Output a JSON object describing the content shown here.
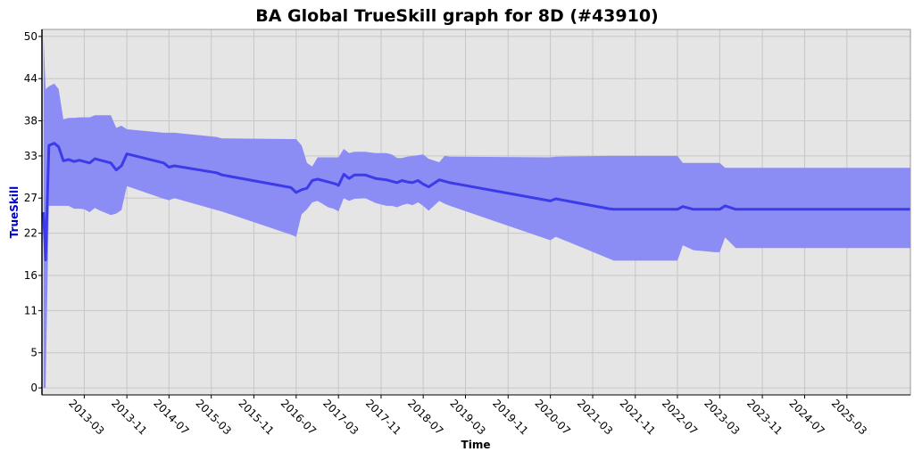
{
  "chart_data": {
    "type": "line",
    "title": "BA Global TrueSkill graph for 8D (#43910)",
    "xlabel": "Time",
    "ylabel": "TrueSkill",
    "x_ticks": [
      "2013-03",
      "2013-11",
      "2014-07",
      "2015-03",
      "2015-11",
      "2016-07",
      "2017-03",
      "2017-11",
      "2018-07",
      "2019-03",
      "2019-11",
      "2020-07",
      "2021-03",
      "2021-11",
      "2022-07",
      "2023-03",
      "2023-11",
      "2024-07",
      "2025-03"
    ],
    "y_ticks": [
      0,
      5,
      11,
      16,
      22,
      27,
      33,
      38,
      44,
      50
    ],
    "xlim": [
      "2012-07",
      "2026-03"
    ],
    "ylim": [
      -1,
      51
    ],
    "grid": true,
    "colors": {
      "line": "#3b3bea",
      "band": "#8c8cf5",
      "plot_bg": "#e5e5e5",
      "ylabel": "#0000cc"
    },
    "series": [
      {
        "x": [
          "2012-07-10",
          "2012-07-22",
          "2012-08-10",
          "2012-09-10",
          "2012-10-05",
          "2012-11-01",
          "2012-12-01",
          "2013-01-01",
          "2013-02-01",
          "2013-03-01",
          "2013-04-01",
          "2013-05-01",
          "2013-06-01",
          "2013-07-01",
          "2013-08-01",
          "2013-09-01",
          "2013-10-01",
          "2013-11-01",
          "2014-06-01",
          "2014-07-01",
          "2014-08-01",
          "2015-04-01",
          "2015-05-01",
          "2016-06-01",
          "2016-07-01",
          "2016-08-01",
          "2016-09-01",
          "2016-10-01",
          "2016-11-01",
          "2017-01-01",
          "2017-02-01",
          "2017-02-15",
          "2017-03-01",
          "2017-04-01",
          "2017-05-01",
          "2017-06-01",
          "2017-08-01",
          "2017-10-01",
          "2017-12-01",
          "2018-01-01",
          "2018-02-01",
          "2018-03-01",
          "2018-04-01",
          "2018-05-01",
          "2018-06-01",
          "2018-07-01",
          "2018-08-01",
          "2018-10-01",
          "2018-11-01",
          "2018-12-01",
          "2020-07-01",
          "2020-08-01",
          "2021-06-01",
          "2021-07-01",
          "2022-06-01",
          "2022-07-01",
          "2022-08-01",
          "2022-10-01",
          "2023-02-01",
          "2023-03-01",
          "2023-04-01",
          "2023-06-01",
          "2026-03-01"
        ],
        "values": [
          25.0,
          18.2,
          34.5,
          34.8,
          34.3,
          32.3,
          32.5,
          32.2,
          32.4,
          32.2,
          32.0,
          32.6,
          32.4,
          32.2,
          32.0,
          31.0,
          31.6,
          33.3,
          32.0,
          31.4,
          31.6,
          30.6,
          30.3,
          28.5,
          27.8,
          28.2,
          28.4,
          29.5,
          29.7,
          29.3,
          29.1,
          29.0,
          28.8,
          30.4,
          29.8,
          30.3,
          30.3,
          29.8,
          29.6,
          29.4,
          29.2,
          29.5,
          29.3,
          29.2,
          29.5,
          29.0,
          28.6,
          29.6,
          29.4,
          29.2,
          26.6,
          26.9,
          25.5,
          25.4,
          25.4,
          25.4,
          25.8,
          25.4,
          25.4,
          25.4,
          25.9,
          25.4,
          25.4
        ],
        "upper": [
          50.0,
          42.5,
          42.9,
          43.3,
          42.5,
          38.2,
          38.4,
          38.4,
          38.5,
          38.5,
          38.5,
          38.8,
          38.8,
          38.8,
          38.8,
          37.0,
          37.3,
          36.8,
          36.3,
          36.3,
          36.3,
          35.7,
          35.5,
          35.4,
          35.4,
          34.5,
          32.0,
          31.5,
          32.8,
          32.8,
          32.8,
          32.8,
          32.8,
          34.0,
          33.4,
          33.6,
          33.6,
          33.4,
          33.4,
          33.2,
          32.7,
          32.7,
          32.9,
          33.0,
          33.1,
          33.2,
          32.6,
          32.1,
          33.0,
          32.9,
          32.8,
          32.9,
          33.0,
          33.0,
          33.0,
          33.0,
          32.0,
          32.0,
          32.0,
          32.0,
          31.3,
          31.3,
          31.3
        ],
        "lower": [
          0.0,
          0.0,
          25.9,
          25.9,
          25.9,
          25.9,
          25.9,
          25.5,
          25.5,
          25.4,
          25.0,
          25.6,
          25.2,
          24.9,
          24.6,
          24.8,
          25.3,
          28.7,
          26.9,
          26.7,
          27.0,
          25.3,
          25.1,
          21.8,
          21.5,
          24.7,
          25.4,
          26.4,
          26.6,
          25.7,
          25.5,
          25.3,
          25.1,
          27.0,
          26.6,
          26.9,
          27.0,
          26.3,
          25.9,
          25.9,
          25.7,
          26.0,
          26.2,
          26.0,
          26.4,
          25.9,
          25.2,
          26.6,
          26.2,
          25.9,
          21.0,
          21.5,
          18.4,
          18.1,
          18.1,
          18.1,
          20.3,
          19.6,
          19.3,
          19.3,
          21.4,
          19.9,
          19.9
        ]
      }
    ]
  }
}
